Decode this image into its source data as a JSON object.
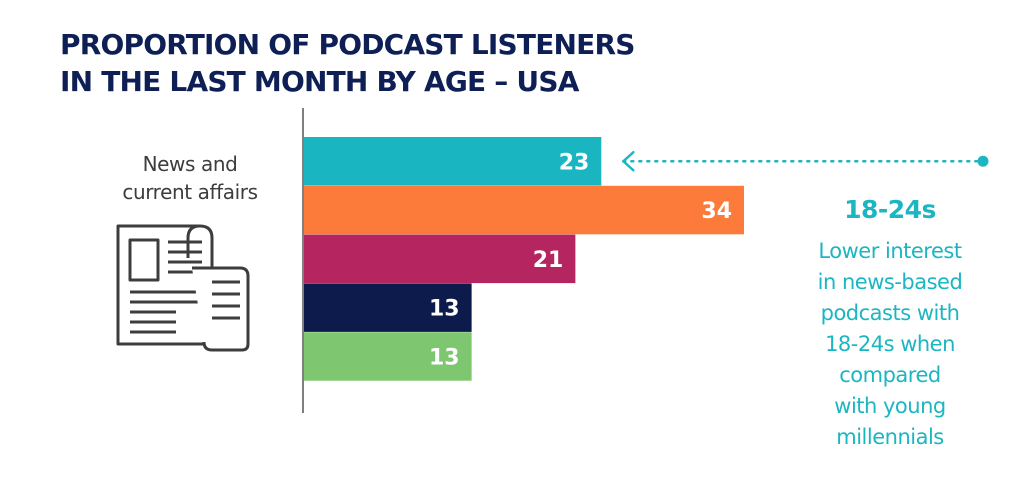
{
  "title_lines": [
    "PROPORTION OF PODCAST LISTENERS",
    "IN THE LAST MONTH BY AGE – USA"
  ],
  "category_label_lines": [
    "News and",
    "current affairs"
  ],
  "icon": "newspaper-icon",
  "chart_data": {
    "type": "bar",
    "orientation": "horizontal",
    "title": "PROPORTION OF PODCAST LISTENERS IN THE LAST MONTH BY AGE – USA",
    "category": "News and current affairs",
    "values": [
      23,
      34,
      21,
      13,
      13
    ],
    "colors": [
      "#19b6c1",
      "#fc7b3a",
      "#b5255f",
      "#0d1a4c",
      "#7fc670"
    ],
    "xlim": [
      0,
      34
    ],
    "grid": false,
    "legend": "none"
  },
  "annotation": {
    "heading": "18-24s",
    "body_lines": [
      "Lower interest",
      "in news-based",
      "podcasts with",
      "18-24s when",
      "compared",
      "with young",
      "millennials"
    ],
    "color": "#1cb6c2",
    "points_to_value": 23
  }
}
